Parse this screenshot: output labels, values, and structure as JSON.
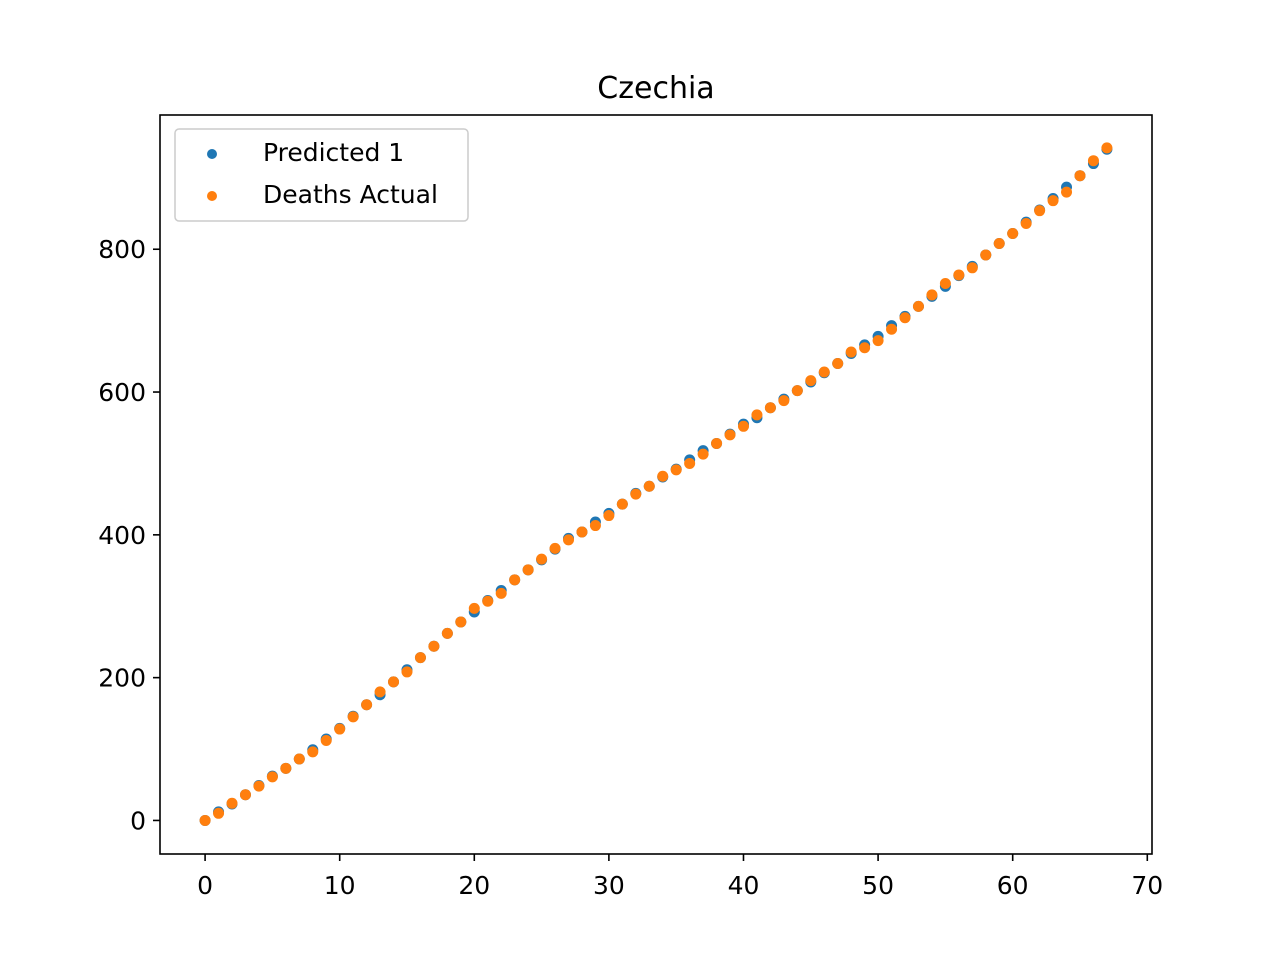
{
  "chart_data": {
    "type": "scatter",
    "title": "Czechia",
    "xlabel": "",
    "ylabel": "",
    "xlim": [
      -3.35,
      70.35
    ],
    "ylim": [
      -47,
      988
    ],
    "xticks": [
      0,
      10,
      20,
      30,
      40,
      50,
      60,
      70
    ],
    "yticks": [
      0,
      200,
      400,
      600,
      800
    ],
    "grid": false,
    "legend_position": "upper-left",
    "series": [
      {
        "name": "Predicted 1",
        "color": "#1f77b4",
        "x": [
          0,
          1,
          2,
          3,
          4,
          5,
          6,
          7,
          8,
          9,
          10,
          11,
          12,
          13,
          14,
          15,
          16,
          17,
          18,
          19,
          20,
          21,
          22,
          23,
          24,
          25,
          26,
          27,
          28,
          29,
          30,
          31,
          32,
          33,
          34,
          35,
          36,
          37,
          38,
          39,
          40,
          41,
          42,
          43,
          44,
          45,
          46,
          47,
          48,
          49,
          50,
          51,
          52,
          53,
          54,
          55,
          56,
          57,
          58,
          59,
          60,
          61,
          62,
          63,
          64,
          65,
          66,
          67
        ],
        "y": [
          0,
          12,
          23,
          36,
          49,
          62,
          73,
          86,
          99,
          114,
          129,
          146,
          162,
          176,
          194,
          211,
          228,
          244,
          262,
          278,
          292,
          308,
          322,
          337,
          351,
          365,
          380,
          395,
          404,
          418,
          430,
          443,
          458,
          468,
          481,
          492,
          505,
          518,
          528,
          541,
          555,
          564,
          578,
          590,
          602,
          614,
          627,
          640,
          654,
          666,
          678,
          693,
          706,
          720,
          734,
          748,
          763,
          776,
          792,
          808,
          822,
          838,
          855,
          871,
          887,
          903,
          920,
          940
        ]
      },
      {
        "name": "Deaths Actual",
        "color": "#ff7f0e",
        "x": [
          0,
          1,
          2,
          3,
          4,
          5,
          6,
          7,
          8,
          9,
          10,
          11,
          12,
          13,
          14,
          15,
          16,
          17,
          18,
          19,
          20,
          21,
          22,
          23,
          24,
          25,
          26,
          27,
          28,
          29,
          30,
          31,
          32,
          33,
          34,
          35,
          36,
          37,
          38,
          39,
          40,
          41,
          42,
          43,
          44,
          45,
          46,
          47,
          48,
          49,
          50,
          51,
          52,
          53,
          54,
          55,
          56,
          57,
          58,
          59,
          60,
          61,
          62,
          63,
          64,
          65,
          66,
          67
        ],
        "y": [
          0,
          10,
          24,
          36,
          48,
          61,
          73,
          86,
          96,
          112,
          128,
          145,
          162,
          180,
          194,
          208,
          228,
          244,
          262,
          278,
          297,
          307,
          318,
          337,
          351,
          366,
          381,
          393,
          404,
          413,
          427,
          443,
          457,
          468,
          482,
          491,
          500,
          513,
          528,
          540,
          552,
          568,
          578,
          588,
          602,
          616,
          628,
          640,
          656,
          662,
          672,
          688,
          704,
          720,
          736,
          752,
          764,
          774,
          792,
          808,
          822,
          836,
          854,
          868,
          880,
          903,
          924,
          942
        ]
      }
    ]
  }
}
